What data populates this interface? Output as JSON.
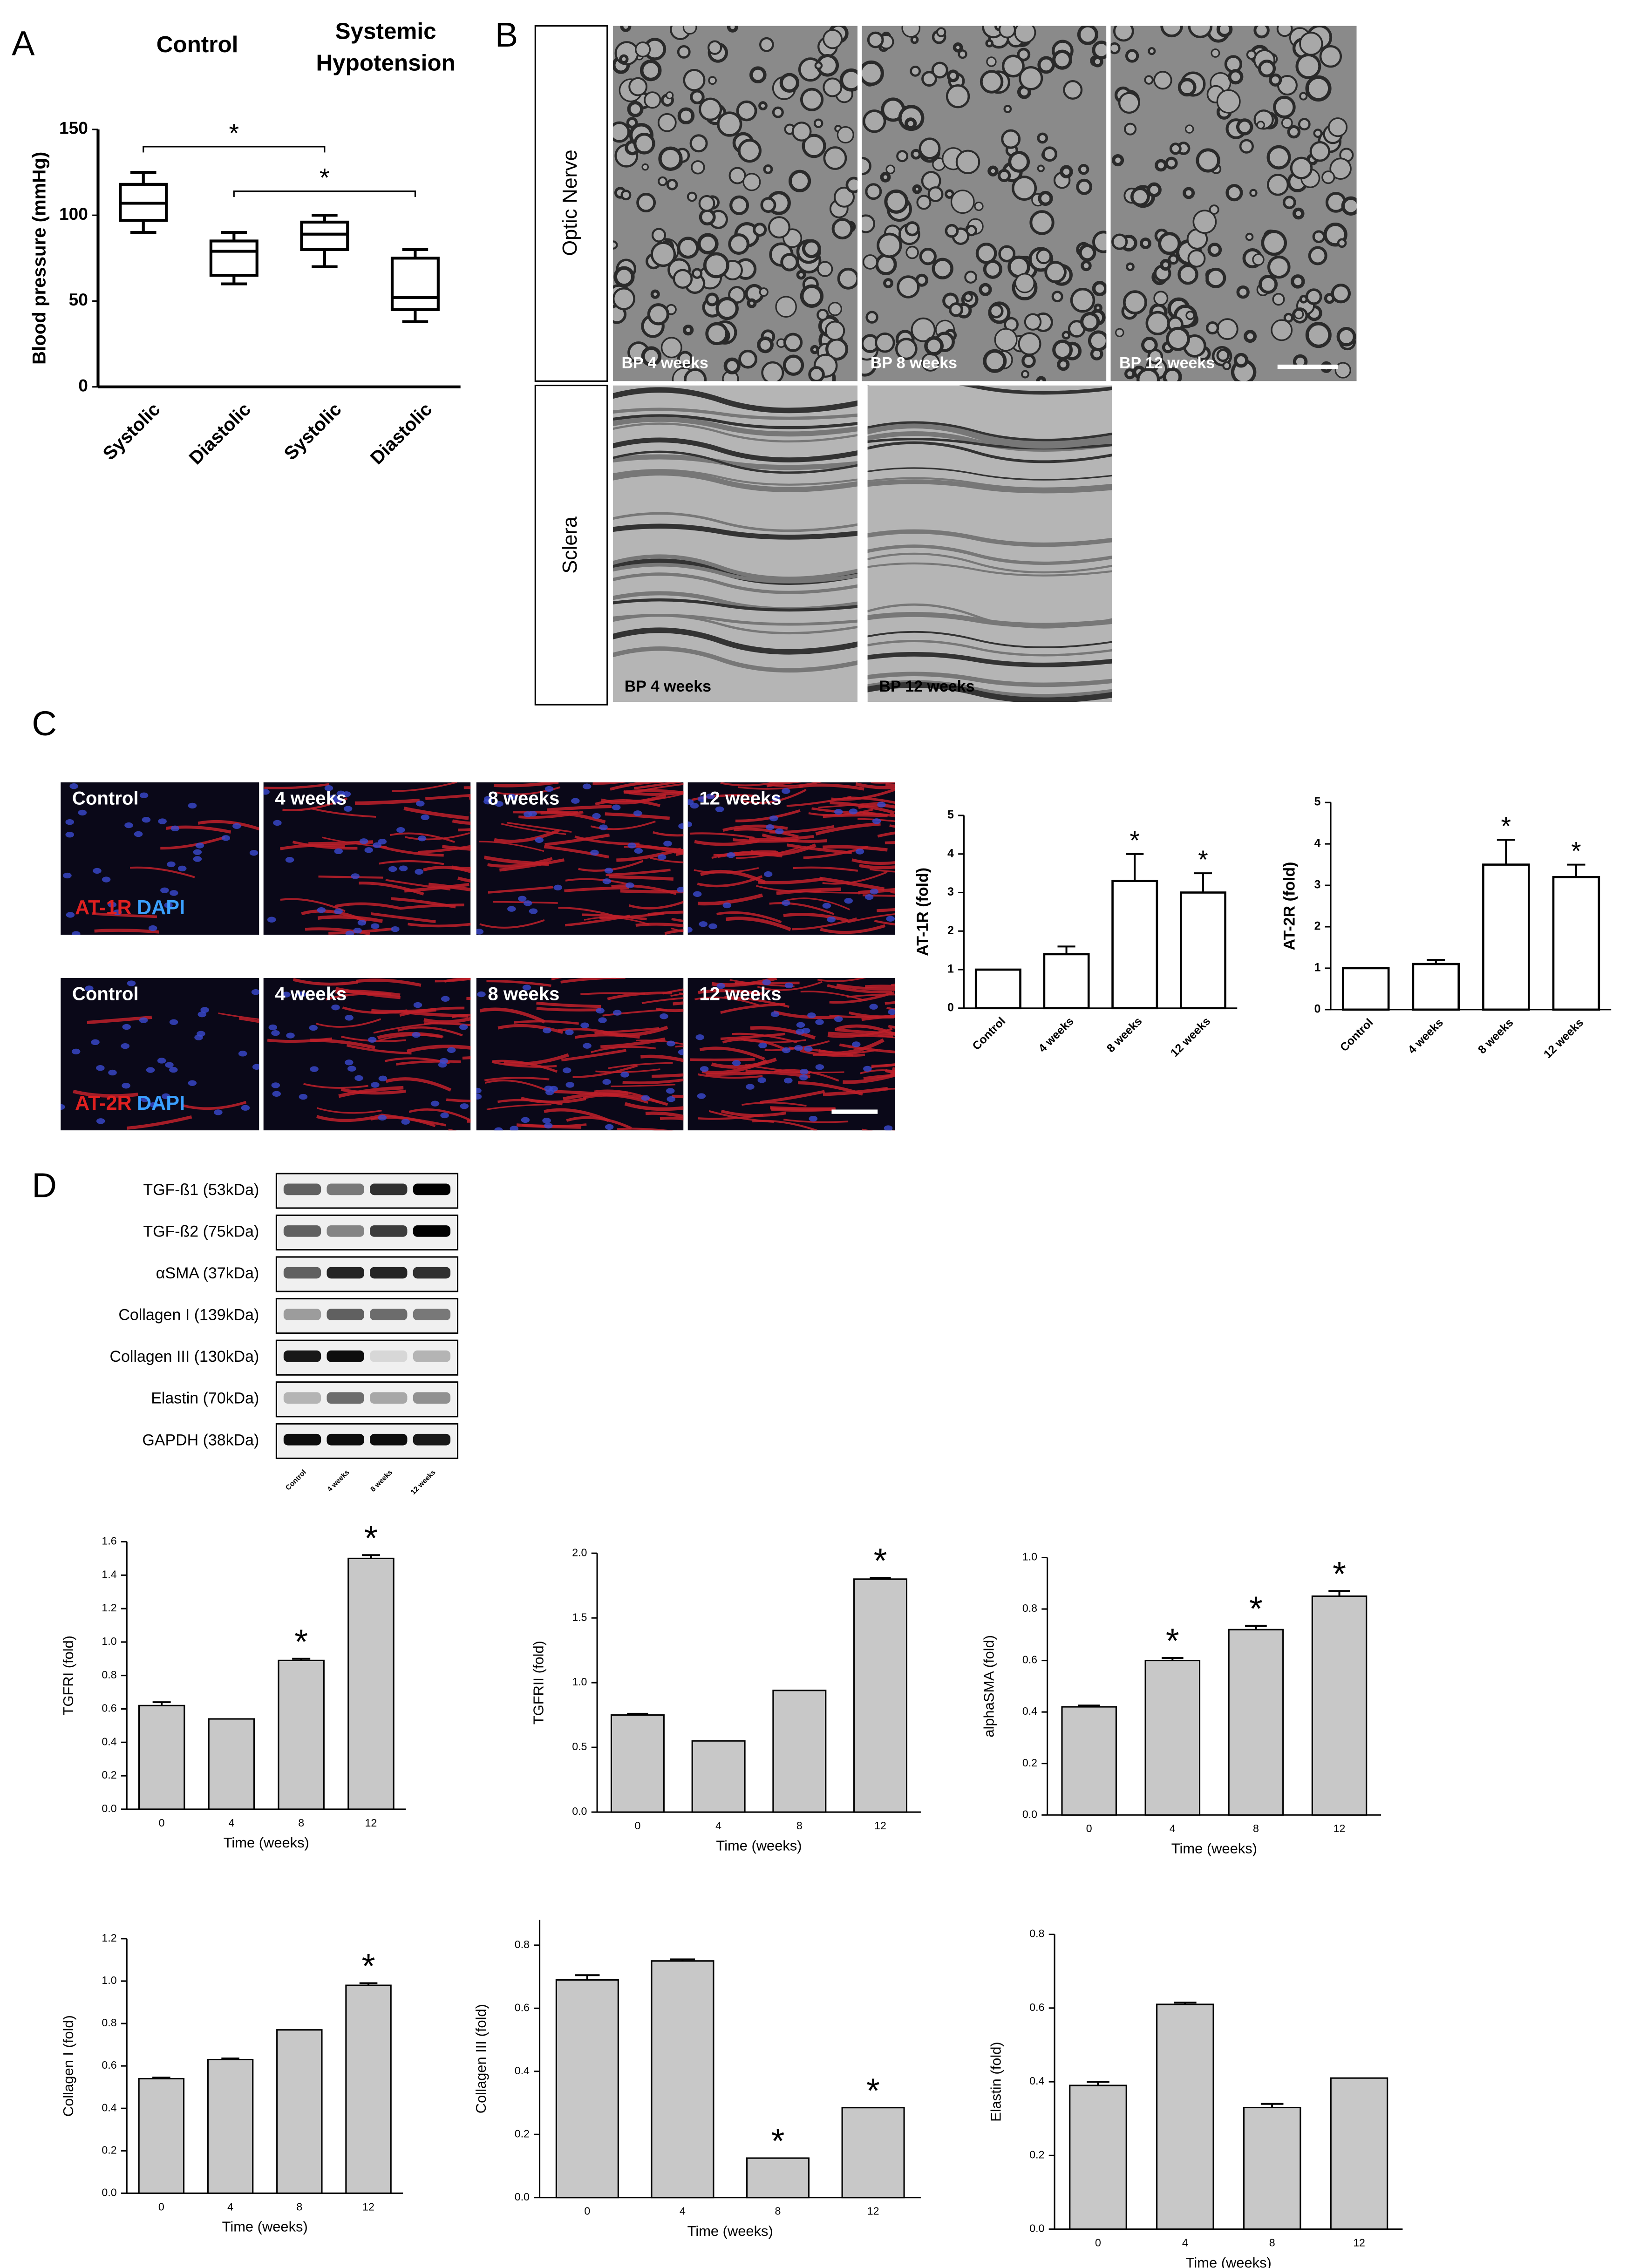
{
  "panel_labels": [
    "A",
    "B",
    "C",
    "D"
  ],
  "micrographs": {
    "row_labels": [
      "Optic Nerve",
      "Sclera"
    ],
    "captions": [
      "BP 4 weeks",
      "BP 8 weeks",
      "BP 12 weeks",
      "BP 4 weeks",
      "BP 12 weeks"
    ]
  },
  "staining": {
    "timepoints": [
      "Control",
      "4 weeks",
      "8 weeks",
      "12 weeks"
    ],
    "markers": [
      [
        "AT-1R",
        "DAPI"
      ],
      [
        "AT-2R",
        "DAPI"
      ]
    ]
  },
  "blot": {
    "labels": [
      "TGF-ß1 (53kDa)",
      "TGF-ß2 (75kDa)",
      "αSMA (37kDa)",
      "Collagen I (139kDa)",
      "Collagen III (130kDa)",
      "Elastin (70kDa)",
      "GAPDH (38kDa)"
    ],
    "lanes": [
      "Control",
      "4 weeks",
      "8 weeks",
      "12 weeks"
    ]
  },
  "chart_data": [
    {
      "type": "box",
      "group_labels": [
        "Control",
        "Systemic Hypotension"
      ],
      "y_label": "Blood pressure (mmHg)",
      "categories": [
        "Systolic",
        "Diastolic",
        "Systolic",
        "Diastolic"
      ],
      "values": [
        [
          90,
          97,
          107,
          118,
          125
        ],
        [
          60,
          65,
          79,
          85,
          90
        ],
        [
          70,
          80,
          89,
          96,
          100
        ],
        [
          38,
          45,
          52,
          75,
          80
        ]
      ],
      "ylim": [
        0,
        150
      ],
      "yticks": [
        0,
        50,
        100,
        150
      ],
      "color": "#ffffff",
      "significance": [
        {
          "pair": [
            0,
            2
          ],
          "label": "*"
        },
        {
          "pair": [
            1,
            3
          ],
          "label": "*"
        }
      ]
    },
    {
      "type": "bar",
      "y_label": "AT-1R (fold)",
      "categories": [
        "Control",
        "4 weeks",
        "8 weeks",
        "12 weeks"
      ],
      "values": [
        1,
        1.4,
        3.3,
        3.0
      ],
      "errors": [
        0,
        0.2,
        0.7,
        0.5
      ],
      "ylim": [
        0,
        5
      ],
      "yticks": [
        0,
        1,
        2,
        3,
        4,
        5
      ],
      "color": "#ffffff",
      "significance": [
        {
          "index": 2,
          "label": "*"
        },
        {
          "index": 3,
          "label": "*"
        }
      ]
    },
    {
      "type": "bar",
      "y_label": "AT-2R (fold)",
      "categories": [
        "Control",
        "4 weeks",
        "8 weeks",
        "12 weeks"
      ],
      "values": [
        1,
        1.1,
        3.5,
        3.2
      ],
      "errors": [
        0,
        0.1,
        0.6,
        0.3
      ],
      "ylim": [
        0,
        5
      ],
      "yticks": [
        0,
        1,
        2,
        3,
        4,
        5
      ],
      "color": "#ffffff",
      "significance": [
        {
          "index": 2,
          "label": "*"
        },
        {
          "index": 3,
          "label": "*"
        }
      ]
    },
    {
      "type": "bar",
      "y_label": "TGFRI (fold)",
      "x_label": "Time (weeks)",
      "categories": [
        "0",
        "4",
        "8",
        "12"
      ],
      "values": [
        0.62,
        0.54,
        0.89,
        1.5
      ],
      "errors": [
        0.02,
        0,
        0.01,
        0.02
      ],
      "ylim": [
        0,
        1.6
      ],
      "yticks": [
        {
          "value": 0,
          "label": "0.0"
        },
        0.2,
        0.4,
        0.6,
        0.8,
        {
          "value": 1,
          "label": "1.0"
        },
        1.2,
        1.4,
        1.6
      ],
      "color": "#c8c8c8",
      "significance": [
        {
          "index": 2,
          "label": "*"
        },
        {
          "index": 3,
          "label": "*"
        }
      ]
    },
    {
      "type": "bar",
      "y_label": "TGFRII (fold)",
      "x_label": "Time (weeks)",
      "categories": [
        "0",
        "4",
        "8",
        "12"
      ],
      "values": [
        0.75,
        0.55,
        0.94,
        1.8
      ],
      "errors": [
        0.01,
        0,
        0,
        0.01
      ],
      "ylim": [
        0,
        2.0
      ],
      "yticks": [
        {
          "value": 0,
          "label": "0.0"
        },
        0.5,
        {
          "value": 1,
          "label": "1.0"
        },
        1.5,
        {
          "value": 2,
          "label": "2.0"
        }
      ],
      "color": "#c8c8c8",
      "significance": [
        {
          "index": 3,
          "label": "*"
        }
      ]
    },
    {
      "type": "bar",
      "y_label": "alphaSMA (fold)",
      "x_label": "Time (weeks)",
      "categories": [
        "0",
        "4",
        "8",
        "12"
      ],
      "values": [
        0.42,
        0.6,
        0.72,
        0.85
      ],
      "errors": [
        0.005,
        0.01,
        0.015,
        0.02
      ],
      "ylim": [
        0,
        1.0
      ],
      "yticks": [
        {
          "value": 0,
          "label": "0.0"
        },
        0.2,
        0.4,
        0.6,
        0.8,
        {
          "value": 1,
          "label": "1.0"
        }
      ],
      "color": "#c8c8c8",
      "significance": [
        {
          "index": 1,
          "label": "*"
        },
        {
          "index": 2,
          "label": "*"
        },
        {
          "index": 3,
          "label": "*"
        }
      ]
    },
    {
      "type": "bar",
      "y_label": "Collagen I (fold)",
      "x_label": "Time (weeks)",
      "categories": [
        "0",
        "4",
        "8",
        "12"
      ],
      "values": [
        0.54,
        0.63,
        0.77,
        0.98
      ],
      "errors": [
        0.005,
        0.005,
        0,
        0.01
      ],
      "ylim": [
        0,
        1.2
      ],
      "yticks": [
        {
          "value": 0,
          "label": "0.0"
        },
        0.2,
        0.4,
        0.6,
        0.8,
        {
          "value": 1,
          "label": "1.0"
        },
        1.2
      ],
      "color": "#c8c8c8",
      "significance": [
        {
          "index": 3,
          "label": "*"
        }
      ]
    },
    {
      "type": "bar",
      "y_label": "Collagen III (fold)",
      "x_label": "Time (weeks)",
      "categories": [
        "0",
        "4",
        "8",
        "12"
      ],
      "values": [
        0.69,
        0.75,
        0.125,
        0.285
      ],
      "errors": [
        0.015,
        0.005,
        0,
        0
      ],
      "ylim": [
        0,
        0.88
      ],
      "yticks": [
        {
          "value": 0,
          "label": "0.0"
        },
        0.2,
        0.4,
        0.6,
        0.8
      ],
      "color": "#c8c8c8",
      "significance": [
        {
          "index": 2,
          "label": "*"
        },
        {
          "index": 3,
          "label": "*"
        }
      ]
    },
    {
      "type": "bar",
      "y_label": "Elastin (fold)",
      "x_label": "Time (weeks)",
      "categories": [
        "0",
        "4",
        "8",
        "12"
      ],
      "values": [
        0.39,
        0.61,
        0.33,
        0.41
      ],
      "errors": [
        0.01,
        0.005,
        0.01,
        0
      ],
      "ylim": [
        0,
        0.8
      ],
      "yticks": [
        {
          "value": 0,
          "label": "0.0"
        },
        0.2,
        0.4,
        0.6,
        0.8
      ],
      "color": "#c8c8c8",
      "significance": []
    }
  ]
}
